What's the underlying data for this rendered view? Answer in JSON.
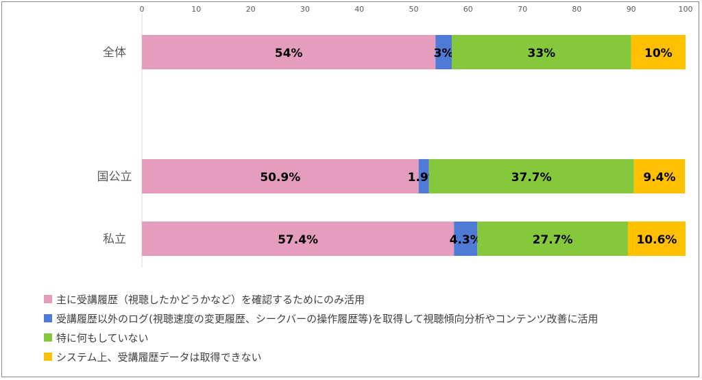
{
  "chart_data": {
    "type": "bar",
    "orientation": "horizontal",
    "stacked": true,
    "xlim": [
      0,
      100
    ],
    "x_ticks": [
      "0",
      "10",
      "20",
      "30",
      "40",
      "50",
      "60",
      "70",
      "80",
      "90",
      "100"
    ],
    "categories": [
      "全体",
      "国公立",
      "私立"
    ],
    "series": [
      {
        "name": "主に受講履歴（視聴したかどうかなど）を確認するためにのみ活用",
        "color": "#e59dbd",
        "values": [
          54,
          50.9,
          57.4
        ],
        "labels": [
          "54%",
          "50.9%",
          "57.4%"
        ]
      },
      {
        "name": "受講履歴以外のログ(視聴速度の変更履歴、シークバーの操作履歴等)を取得して視聴傾向分析やコンテンツ改善に活用",
        "color": "#4f7ad6",
        "values": [
          3,
          1.9,
          4.3
        ],
        "labels": [
          "3%",
          "1.9%",
          "4.3%"
        ]
      },
      {
        "name": "特に何もしていない",
        "color": "#86c83b",
        "values": [
          33,
          37.7,
          27.7
        ],
        "labels": [
          "33%",
          "37.7%",
          "27.7%"
        ]
      },
      {
        "name": "システム上、受講履歴データは取得できない",
        "color": "#ffc000",
        "values": [
          10,
          9.4,
          10.6
        ],
        "labels": [
          "10%",
          "9.4%",
          "10.6%"
        ]
      }
    ],
    "grid": false,
    "legend_position": "bottom-left"
  }
}
